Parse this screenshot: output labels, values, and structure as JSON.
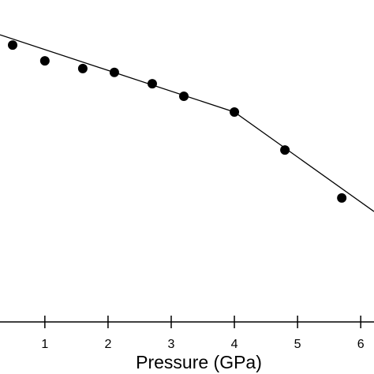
{
  "chart_data": {
    "type": "scatter",
    "xlabel": "Pressure (GPa)",
    "x": [
      0.49,
      1.0,
      1.6,
      2.1,
      2.7,
      3.2,
      4.0,
      4.8,
      5.7
    ],
    "values": [
      86.0,
      81.1,
      78.7,
      77.5,
      74.0,
      70.1,
      65.2,
      53.4,
      38.5
    ],
    "color": "#000000",
    "line": {
      "x": [
        0.29,
        4.0,
        6.21
      ],
      "values": [
        89.2,
        65.2,
        34.3
      ],
      "color": "#000000"
    },
    "xlim": [
      0.29,
      6.21
    ],
    "ylim": [
      0,
      100
    ],
    "xticks": [
      1,
      2,
      3,
      4,
      5,
      6
    ]
  }
}
